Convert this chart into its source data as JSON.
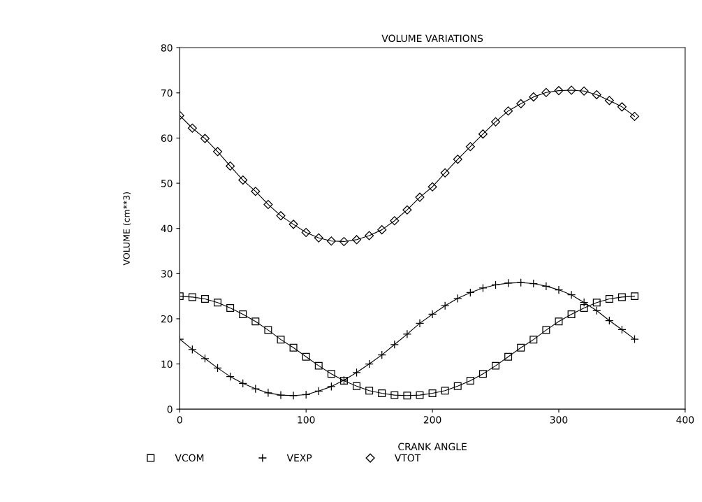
{
  "chart_data": {
    "type": "line",
    "title": "VOLUME VARIATIONS",
    "xlabel": "CRANK ANGLE",
    "ylabel": "VOLUME (cm**3)",
    "x": [
      0,
      10,
      20,
      30,
      40,
      50,
      60,
      70,
      80,
      90,
      100,
      110,
      120,
      130,
      140,
      150,
      160,
      170,
      180,
      190,
      200,
      210,
      220,
      230,
      240,
      250,
      260,
      270,
      280,
      290,
      300,
      310,
      320,
      330,
      340,
      350,
      360
    ],
    "series": [
      {
        "name": "VCOM",
        "color": "#000000",
        "marker": "square",
        "values": [
          25,
          24.8,
          24.4,
          23.6,
          22.4,
          21.0,
          19.4,
          17.5,
          15.4,
          13.6,
          11.6,
          9.6,
          7.8,
          6.3,
          5.1,
          4.1,
          3.5,
          3.1,
          3.0,
          3.1,
          3.5,
          4.1,
          5.1,
          6.3,
          7.8,
          9.6,
          11.6,
          13.6,
          15.4,
          17.5,
          19.4,
          21.0,
          22.4,
          23.6,
          24.4,
          24.8,
          25
        ]
      },
      {
        "name": "VEXP",
        "color": "#000000",
        "marker": "cross",
        "values": [
          15.5,
          13.2,
          11.2,
          9.1,
          7.2,
          5.7,
          4.5,
          3.6,
          3.1,
          3.0,
          3.2,
          4.0,
          5.0,
          6.4,
          8.1,
          10.0,
          12.0,
          14.3,
          16.6,
          19.0,
          21.0,
          22.9,
          24.5,
          25.8,
          26.8,
          27.5,
          27.9,
          28.0,
          27.8,
          27.2,
          26.4,
          25.3,
          23.6,
          21.8,
          19.6,
          17.6,
          15.5
        ]
      },
      {
        "name": "VTOT",
        "color": "#000000",
        "marker": "diamond",
        "values": [
          65,
          62.2,
          59.9,
          57,
          53.8,
          50.7,
          48.2,
          45.3,
          42.8,
          40.9,
          39.1,
          37.9,
          37.2,
          37.1,
          37.5,
          38.4,
          39.7,
          41.7,
          44.1,
          46.9,
          49.2,
          52.3,
          55.3,
          58.1,
          60.9,
          63.6,
          66.0,
          67.6,
          69.1,
          70.1,
          70.5,
          70.6,
          70.4,
          69.6,
          68.3,
          66.9,
          64.8
        ]
      }
    ],
    "xlim": [
      0,
      400
    ],
    "xticks": [
      0,
      100,
      200,
      300,
      400
    ],
    "ylim": [
      0,
      80
    ],
    "yticks": [
      0,
      10,
      20,
      30,
      40,
      50,
      60,
      70,
      80
    ],
    "grid": false,
    "legend": "bottom",
    "line_style": "solid"
  }
}
